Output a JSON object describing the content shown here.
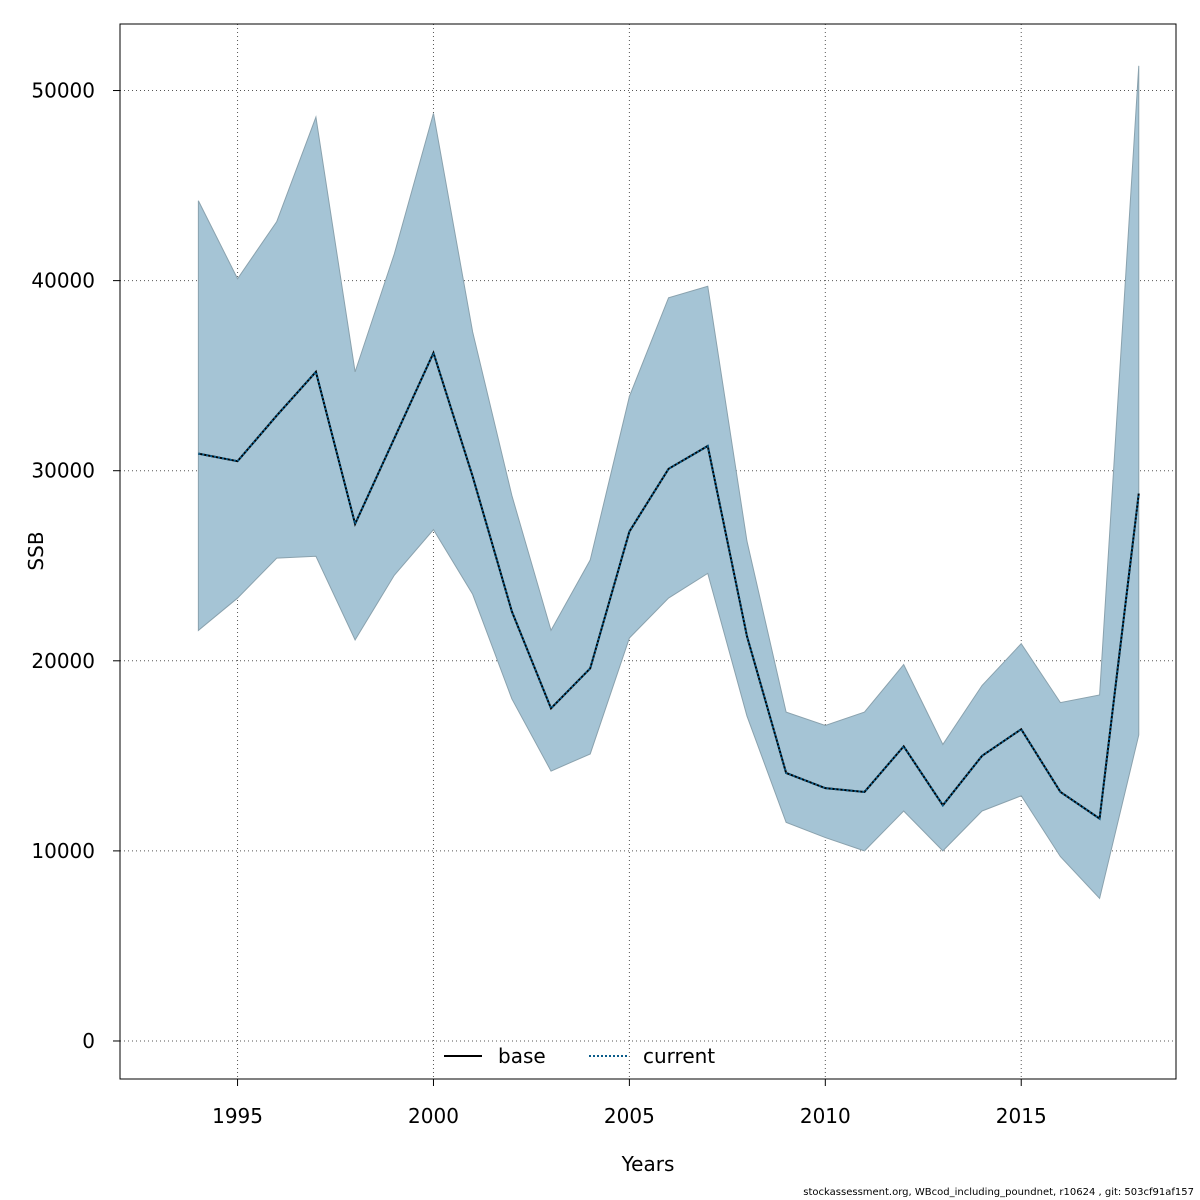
{
  "chart_data": {
    "type": "area",
    "xlabel": "Years",
    "ylabel": "SSB",
    "xlim": [
      1992,
      2018.95
    ],
    "ylim": [
      -2000,
      53500
    ],
    "x_ticks": [
      1995,
      2000,
      2005,
      2010,
      2015
    ],
    "y_ticks": [
      0,
      10000,
      20000,
      30000,
      40000,
      50000
    ],
    "grid": true,
    "legend_position": "bottom-center",
    "x": [
      1994,
      1995,
      1996,
      1997,
      1998,
      1999,
      2000,
      2001,
      2002,
      2003,
      2004,
      2005,
      2006,
      2007,
      2008,
      2009,
      2010,
      2011,
      2012,
      2013,
      2014,
      2015,
      2016,
      2017,
      2018
    ],
    "confidence_band": {
      "color": "#a5c4d5",
      "upper": [
        44200,
        40100,
        43100,
        48600,
        35200,
        41400,
        48800,
        37300,
        28700,
        21600,
        25300,
        33900,
        39100,
        39700,
        26300,
        17300,
        16600,
        17300,
        19800,
        15600,
        18700,
        20900,
        17800,
        18200,
        51300
      ],
      "lower": [
        21600,
        23300,
        25400,
        25500,
        21100,
        24500,
        26900,
        23500,
        18000,
        14200,
        15100,
        21200,
        23300,
        24600,
        17100,
        11500,
        10700,
        10000,
        12100,
        10000,
        12100,
        12900,
        9700,
        7500,
        16100
      ]
    },
    "series": [
      {
        "name": "base",
        "line_style": "solid",
        "color": "#000000",
        "values": [
          30900,
          30500,
          32900,
          35200,
          27200,
          31700,
          36200,
          29700,
          22600,
          17500,
          19600,
          26800,
          30100,
          31300,
          21300,
          14100,
          13300,
          13100,
          15500,
          12400,
          15000,
          16400,
          13100,
          11700,
          28800
        ]
      },
      {
        "name": "current",
        "line_style": "dotted",
        "color": "#0a5c8a",
        "values": [
          30900,
          30500,
          32900,
          35200,
          27200,
          31700,
          36200,
          29700,
          22600,
          17500,
          19600,
          26800,
          30100,
          31300,
          21300,
          14100,
          13300,
          13100,
          15500,
          12400,
          15000,
          16400,
          13100,
          11700,
          28800
        ]
      }
    ]
  },
  "footer": "stockassessment.org, WBcod_including_poundnet, r10624 , git: 503cf91af157"
}
